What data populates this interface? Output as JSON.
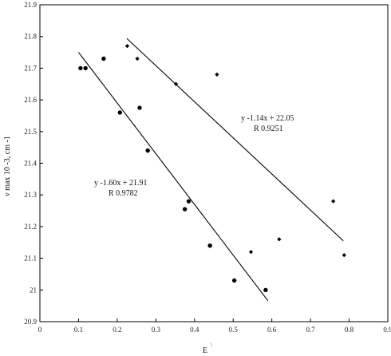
{
  "chart_data": {
    "type": "scatter",
    "xlim": [
      0,
      0.9
    ],
    "ylim": [
      20.9,
      21.9
    ],
    "xticks": [
      "0",
      "0.1",
      "0.2",
      "0.3",
      "0.4",
      "0.5",
      "0.6",
      "0.7",
      "0.8",
      "0.9"
    ],
    "yticks": [
      "20.9",
      "21",
      "21.1",
      "21.2",
      "21.3",
      "21.4",
      "21.5",
      "21.6",
      "21.7",
      "21.8",
      "21.9"
    ],
    "xlabel": "E",
    "ylabel": "ν max 10 -3, cm -1",
    "grid": false,
    "series": [
      {
        "marker": "circle",
        "points": [
          {
            "x": 0.105,
            "y": 21.7
          },
          {
            "x": 0.118,
            "y": 21.7
          },
          {
            "x": 0.165,
            "y": 21.73
          },
          {
            "x": 0.207,
            "y": 21.56
          },
          {
            "x": 0.258,
            "y": 21.575
          },
          {
            "x": 0.279,
            "y": 21.44
          },
          {
            "x": 0.375,
            "y": 21.255
          },
          {
            "x": 0.385,
            "y": 21.28
          },
          {
            "x": 0.44,
            "y": 21.14
          },
          {
            "x": 0.503,
            "y": 21.03
          },
          {
            "x": 0.584,
            "y": 21.0
          }
        ],
        "fit": {
          "x": [
            0.1,
            0.59
          ],
          "equation": "y   -1.60x + 21.91",
          "r": "R   0.9782"
        }
      },
      {
        "marker": "diamond",
        "points": [
          {
            "x": 0.226,
            "y": 21.77
          },
          {
            "x": 0.252,
            "y": 21.73
          },
          {
            "x": 0.352,
            "y": 21.65
          },
          {
            "x": 0.458,
            "y": 21.68
          },
          {
            "x": 0.546,
            "y": 21.12
          },
          {
            "x": 0.619,
            "y": 21.16
          },
          {
            "x": 0.759,
            "y": 21.28
          },
          {
            "x": 0.787,
            "y": 21.11
          }
        ],
        "fit": {
          "x": [
            0.225,
            0.785
          ],
          "equation": "y   -1.14x + 22.05",
          "r": "R   0.9251"
        }
      }
    ]
  }
}
